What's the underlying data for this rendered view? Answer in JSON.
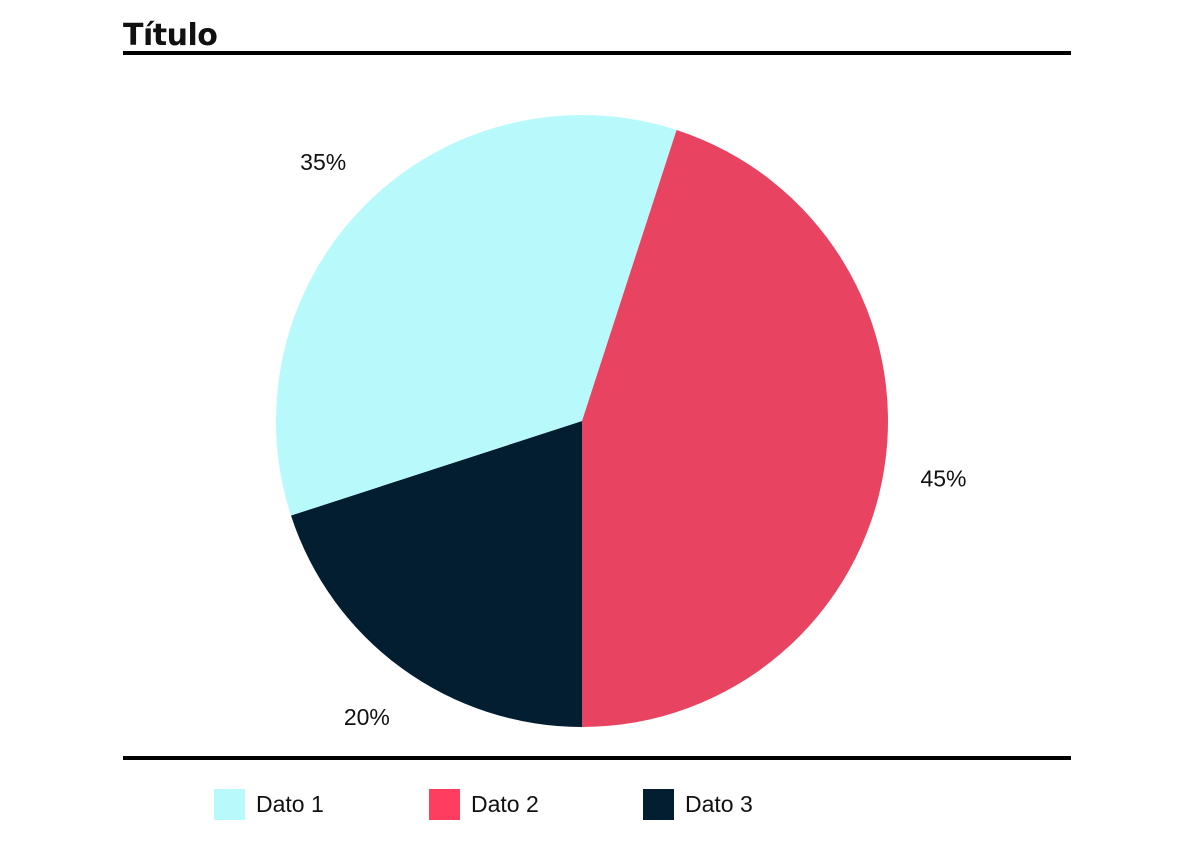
{
  "chart_data": {
    "type": "pie",
    "title": "Título",
    "slices": [
      {
        "name": "Dato 1",
        "label": "35%",
        "value": 35,
        "color": "#b8fafc"
      },
      {
        "name": "Dato 2",
        "label": "45%",
        "value": 45,
        "color": "#e84462"
      },
      {
        "name": "Dato 3",
        "label": "20%",
        "value": 20,
        "color": "#021e30"
      }
    ],
    "legend": {
      "placement": "bottom",
      "entries": [
        {
          "label": "Dato 1",
          "color": "#b8fafc"
        },
        {
          "label": "Dato 2",
          "color": "#ff3d61"
        },
        {
          "label": "Dato 3",
          "color": "#021e30"
        }
      ]
    }
  }
}
